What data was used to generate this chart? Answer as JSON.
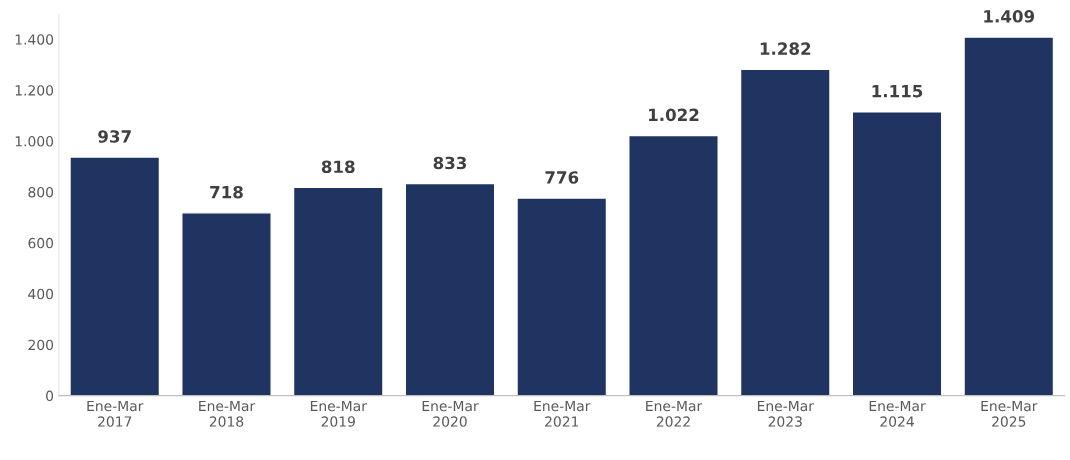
{
  "chart_data": {
    "type": "bar",
    "categories": [
      "Ene-Mar\n2017",
      "Ene-Mar\n2018",
      "Ene-Mar\n2019",
      "Ene-Mar\n2020",
      "Ene-Mar\n2021",
      "Ene-Mar\n2022",
      "Ene-Mar\n2023",
      "Ene-Mar\n2024",
      "Ene-Mar\n2025"
    ],
    "values": [
      937,
      718,
      818,
      833,
      776,
      1022,
      1282,
      1115,
      1409
    ],
    "value_labels": [
      "937",
      "718",
      "818",
      "833",
      "776",
      "1.022",
      "1.282",
      "1.115",
      "1.409"
    ],
    "color": "#1f3461",
    "ylim": [
      0,
      1500
    ],
    "yticks": [
      0,
      200,
      400,
      600,
      800,
      {
        "value": 1000,
        "label": "1.000"
      },
      {
        "value": 1200,
        "label": "1.200"
      },
      {
        "value": 1400,
        "label": "1.400"
      }
    ],
    "grid": false,
    "legend": false
  }
}
